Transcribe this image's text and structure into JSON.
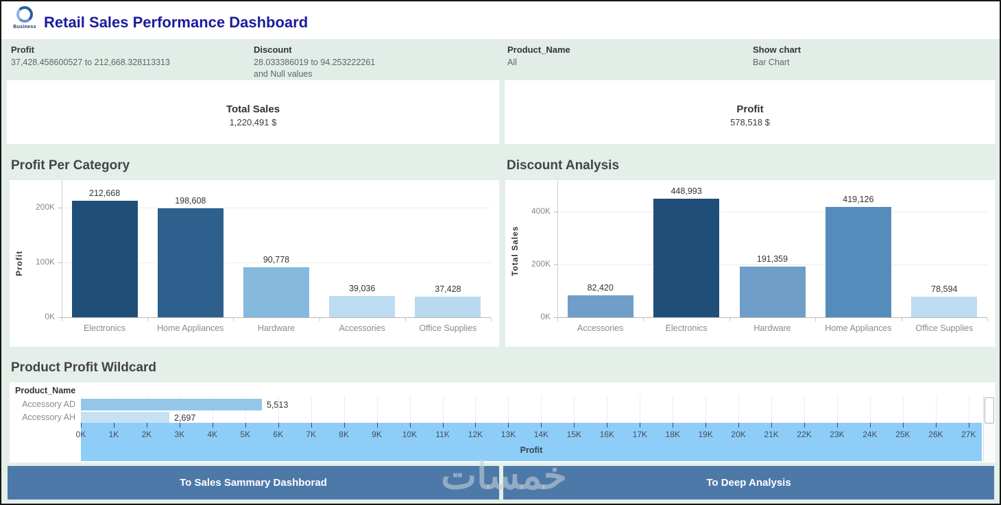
{
  "header": {
    "title": "Retail Sales Performance Dashboard",
    "logo_text": "Business"
  },
  "filters": [
    {
      "label": "Profit",
      "value": "37,428.458600527 to 212,668.328113313",
      "value2": ""
    },
    {
      "label": "Discount",
      "value": "28.033386019 to 94.253222261",
      "value2": "and Null values"
    },
    {
      "label": "Product_Name",
      "value": "All",
      "value2": ""
    },
    {
      "label": "Show chart",
      "value": "Bar Chart",
      "value2": ""
    }
  ],
  "kpis": [
    {
      "title": "Total Sales",
      "value": "1,220,491 $"
    },
    {
      "title": "Profit",
      "value": "578,518 $"
    }
  ],
  "buttons": [
    {
      "label": "To Sales Sammary Dashborad"
    },
    {
      "label": "To Deep Analysis"
    }
  ],
  "watermark": "خمسات",
  "colors": {
    "title_accent": "#1b1b9e",
    "background_mint": "#e4efe9",
    "filter_bar": "#e2ede8",
    "button_blue": "#4d79a9",
    "axis_band_blue": "#8ecdf8",
    "dark_bar": "#1f4e79"
  },
  "chart_data": [
    {
      "type": "bar",
      "title": "Profit Per Category",
      "categories": [
        "Electronics",
        "Home Appliances",
        "Hardware",
        "Accessories",
        "Office Supplies"
      ],
      "values": [
        212668,
        198608,
        90778,
        39036,
        37428
      ],
      "value_labels": [
        "212,668",
        "198,608",
        "90,778",
        "39,036",
        "37,428"
      ],
      "bar_colors": [
        "#1f4e79",
        "#2e608e",
        "#85b9de",
        "#bcdcf1",
        "#b7daf0"
      ],
      "xlabel": "",
      "ylabel": "Profit",
      "yticks": [
        {
          "label": "0K",
          "value": 0
        },
        {
          "label": "100K",
          "value": 100000
        },
        {
          "label": "200K",
          "value": 200000
        }
      ],
      "ylim": [
        0,
        250000
      ],
      "grid": true,
      "legend": "none"
    },
    {
      "type": "bar",
      "title": "Discount Analysis",
      "categories": [
        "Accessories",
        "Electronics",
        "Hardware",
        "Home Appliances",
        "Office Supplies"
      ],
      "values": [
        82420,
        448993,
        191359,
        419126,
        78594
      ],
      "value_labels": [
        "82,420",
        "448,993",
        "191,359",
        "419,126",
        "78,594"
      ],
      "bar_colors": [
        "#6f9fc8",
        "#1f4e79",
        "#6f9fc8",
        "#568cbb",
        "#bcdcf1"
      ],
      "xlabel": "",
      "ylabel": "Total Sales",
      "yticks": [
        {
          "label": "0K",
          "value": 0
        },
        {
          "label": "200K",
          "value": 200000
        },
        {
          "label": "400K",
          "value": 400000
        }
      ],
      "ylim": [
        0,
        520000
      ],
      "grid": true,
      "legend": "none"
    },
    {
      "type": "bar-horizontal",
      "title": "Product Profit Wildcard",
      "column_header": "Product_Name",
      "categories": [
        "Accessory AD",
        "Accessory AH"
      ],
      "values": [
        5513,
        2697
      ],
      "value_labels": [
        "5,513",
        "2,697"
      ],
      "bar_colors": [
        "#94c6e8",
        "#c6e1f3"
      ],
      "xlabel": "Profit",
      "xticks": [
        "0K",
        "1K",
        "2K",
        "3K",
        "4K",
        "5K",
        "6K",
        "7K",
        "8K",
        "9K",
        "10K",
        "11K",
        "12K",
        "13K",
        "14K",
        "15K",
        "16K",
        "17K",
        "18K",
        "19K",
        "20K",
        "21K",
        "22K",
        "23K",
        "24K",
        "25K",
        "26K",
        "27K"
      ],
      "xtick_step": 1000,
      "xlim": [
        0,
        27400
      ],
      "grid": true
    }
  ]
}
